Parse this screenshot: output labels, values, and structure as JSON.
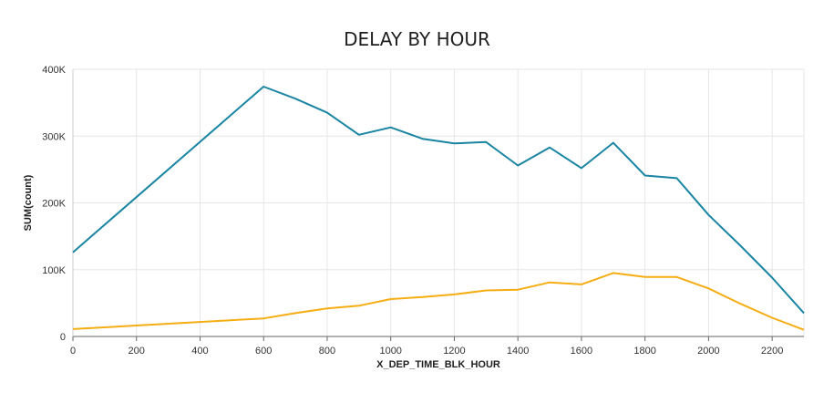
{
  "chart_data": {
    "type": "line",
    "title": "DELAY BY HOUR",
    "xlabel": "X_DEP_TIME_BLK_HOUR",
    "ylabel": "SUM(count)",
    "xlim": [
      0,
      2300
    ],
    "ylim": [
      0,
      400000
    ],
    "grid": true,
    "legend": "none",
    "x_ticks": [
      0,
      200,
      400,
      600,
      800,
      1000,
      1200,
      1400,
      1600,
      1800,
      2000,
      2200
    ],
    "x_tick_labels": [
      "0",
      "200",
      "400",
      "600",
      "800",
      "1000",
      "1200",
      "1400",
      "1600",
      "1800",
      "2000",
      "2200"
    ],
    "y_ticks": [
      0,
      100000,
      200000,
      300000,
      400000
    ],
    "y_tick_labels": [
      "0",
      "100K",
      "200K",
      "300K",
      "400K"
    ],
    "series": [
      {
        "color": "#1a85a3",
        "x": [
          0,
          600,
          700,
          800,
          900,
          1000,
          1100,
          1200,
          1300,
          1400,
          1500,
          1600,
          1700,
          1800,
          1900,
          2000,
          2100,
          2200,
          2300
        ],
        "values": [
          126000,
          374000,
          356000,
          335000,
          302000,
          313000,
          296000,
          289000,
          291000,
          256000,
          283000,
          252000,
          290000,
          241000,
          237000,
          182000,
          136000,
          88000,
          35000
        ]
      },
      {
        "color": "#f5ad14",
        "x": [
          0,
          600,
          700,
          800,
          900,
          1000,
          1100,
          1200,
          1300,
          1400,
          1500,
          1600,
          1700,
          1800,
          1900,
          2000,
          2100,
          2200,
          2300
        ],
        "values": [
          11000,
          27000,
          35000,
          42000,
          46000,
          56000,
          59000,
          63000,
          69000,
          70000,
          81000,
          78000,
          95000,
          89000,
          89000,
          72000,
          49000,
          28000,
          10000
        ]
      }
    ]
  }
}
